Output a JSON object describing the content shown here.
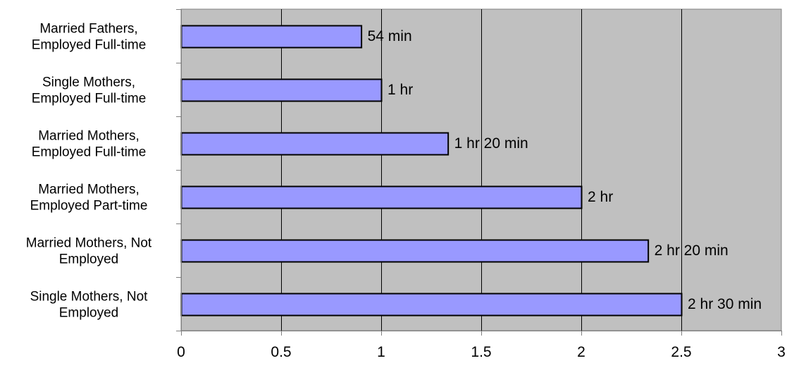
{
  "chart_data": {
    "type": "bar",
    "orientation": "horizontal",
    "categories": [
      [
        "Married Fathers,",
        "Employed Full-time"
      ],
      [
        "Single Mothers,",
        "Employed Full-time"
      ],
      [
        "Married Mothers,",
        "Employed Full-time"
      ],
      [
        "Married Mothers,",
        "Employed Part-time"
      ],
      [
        "Married Mothers, Not",
        "Employed"
      ],
      [
        "Single Mothers, Not",
        "Employed"
      ]
    ],
    "values": [
      0.9,
      1.0,
      1.3333,
      2.0,
      2.3333,
      2.5
    ],
    "data_labels": [
      "54 min",
      "1 hr",
      "1 hr 20 min",
      "2 hr",
      "2 hr 20 min",
      "2 hr 30 min"
    ],
    "x_ticks": [
      "0",
      "0.5",
      "1",
      "1.5",
      "2",
      "2.5",
      "3"
    ],
    "xlim": [
      0,
      3
    ],
    "title": "",
    "xlabel": "",
    "ylabel": "",
    "grid": "vertical",
    "legend": "none",
    "colors": {
      "plot_background": "#c0c0c0",
      "bar_fill": "#9999ff",
      "bar_stroke": "#000000",
      "gridline": "#000000",
      "axis": "#808080"
    }
  }
}
